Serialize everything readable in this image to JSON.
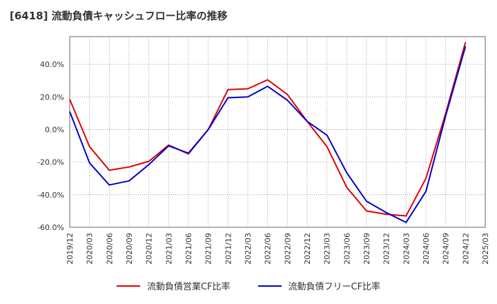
{
  "title": "[6418]  流動負債キャッシュフロー比率の推移",
  "chart_data": {
    "type": "line",
    "x": [
      "2019/12",
      "2020/03",
      "2020/06",
      "2020/09",
      "2020/12",
      "2021/03",
      "2021/06",
      "2021/09",
      "2021/12",
      "2022/03",
      "2022/06",
      "2022/09",
      "2022/12",
      "2023/03",
      "2023/06",
      "2023/09",
      "2023/12",
      "2024/03",
      "2024/06",
      "2024/09",
      "2024/12",
      "2025/03"
    ],
    "xlabel": "",
    "ylabel": "",
    "ylim": [
      -60,
      57
    ],
    "yticks": [
      -60,
      -40,
      -20,
      0,
      20,
      40
    ],
    "ytick_labels": [
      "-60.0%",
      "-40.0%",
      "-20.0%",
      "0.0%",
      "20.0%",
      "40.0%"
    ],
    "grid": true,
    "legend_position": "bottom",
    "series": [
      {
        "name": "流動負債営業CF比率",
        "color": "#dd0000",
        "values": [
          18.5,
          -10.5,
          -25,
          -23,
          -19.5,
          -9.5,
          -15,
          0,
          24.5,
          25,
          30.5,
          21.5,
          5,
          -10.5,
          -35.5,
          -50,
          -52,
          -53,
          -30,
          10,
          53.5,
          null
        ]
      },
      {
        "name": "流動負債フリーCF比率",
        "color": "#0000cc",
        "values": [
          11,
          -20.5,
          -34,
          -31.5,
          -21.5,
          -10,
          -14.5,
          0,
          19.5,
          20,
          26.5,
          18,
          5,
          -3.5,
          -26.5,
          -44,
          -51,
          -57,
          -38,
          8.5,
          51,
          null
        ]
      }
    ]
  }
}
